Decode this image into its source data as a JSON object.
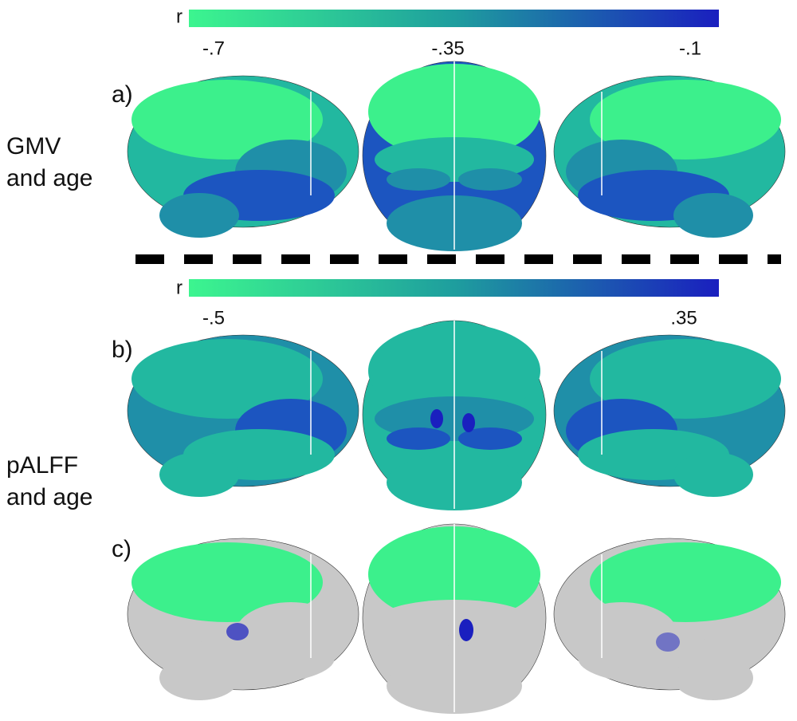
{
  "colorbars": [
    {
      "label": "r",
      "ticks": [
        "-.7",
        "-.35",
        "-.1"
      ],
      "colors": [
        "#3cf58f",
        "#1e9e9e",
        "#1a1fbf"
      ]
    },
    {
      "label": "r",
      "ticks": [
        "-.5",
        ".35"
      ],
      "colors": [
        "#3cf58f",
        "#1e9e9e",
        "#1a1fbf"
      ]
    }
  ],
  "panels": [
    {
      "label": "a)"
    },
    {
      "label": "b)"
    },
    {
      "label": "c)"
    }
  ],
  "captions": [
    {
      "lines": [
        "GMV",
        "and age"
      ]
    },
    {
      "lines": [
        "pALFF",
        "and age"
      ]
    }
  ]
}
